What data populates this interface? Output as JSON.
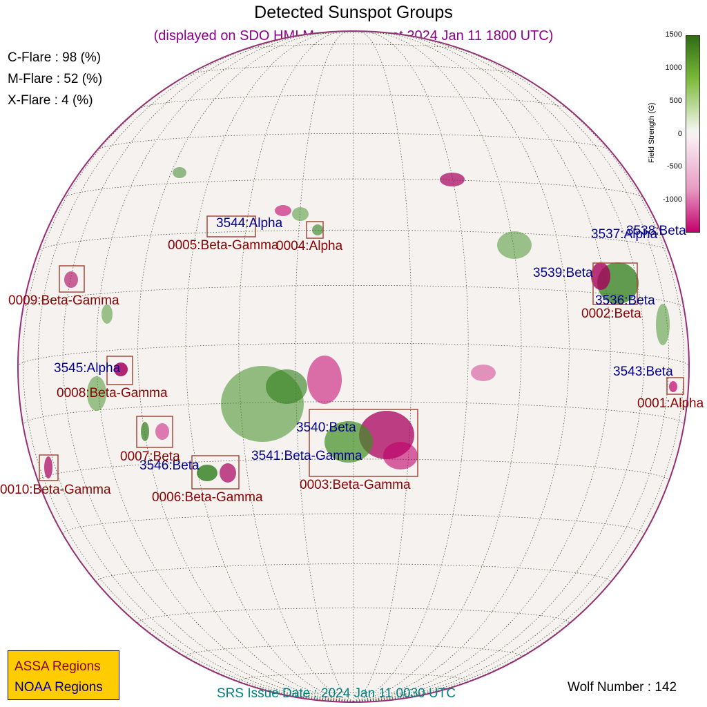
{
  "header": {
    "title": "Detected Sunspot Groups",
    "subtitle": "(displayed on SDO HMI Magnetogram at 2024 Jan 11 1800 UTC)"
  },
  "flare_probabilities": [
    {
      "label": "C-Flare : 98 (%)"
    },
    {
      "label": "M-Flare : 52 (%)"
    },
    {
      "label": "X-Flare :  4 (%)"
    }
  ],
  "colorbar": {
    "title": "Field Strength (G)",
    "ticks": [
      "1500",
      "1000",
      "500",
      "0",
      "-500",
      "-1000"
    ],
    "colors": {
      "positive": "#2e7d1a",
      "negative": "#c2006b",
      "zero": "#f5f0f0"
    }
  },
  "noaa_regions": [
    {
      "label": "3544:Alpha"
    },
    {
      "label": "3537:Alpha"
    },
    {
      "label": "3538:Beta"
    },
    {
      "label": "3539:Beta"
    },
    {
      "label": "3536:Beta"
    },
    {
      "label": "3545:Alpha"
    },
    {
      "label": "3543:Beta"
    },
    {
      "label": "3540:Beta"
    },
    {
      "label": "3541:Beta-Gamma"
    },
    {
      "label": "3546:Beta"
    }
  ],
  "assa_regions": [
    {
      "label": "0005:Beta-Gamma"
    },
    {
      "label": "0004:Alpha"
    },
    {
      "label": "0009:Beta-Gamma"
    },
    {
      "label": "0002:Beta"
    },
    {
      "label": "0008:Beta-Gamma"
    },
    {
      "label": "0001:Alpha"
    },
    {
      "label": "0007:Beta"
    },
    {
      "label": "0006:Beta-Gamma"
    },
    {
      "label": "0003:Beta-Gamma"
    },
    {
      "label": "0010:Beta-Gamma"
    }
  ],
  "legend": {
    "assa_label": "ASSA Regions",
    "noaa_label": "NOAA Regions",
    "background": "#ffcc00"
  },
  "footer": {
    "issue_date": "SRS Issue Date : 2024 Jan 11 0030 UTC",
    "wolf_number": "Wolf Number : 142"
  }
}
